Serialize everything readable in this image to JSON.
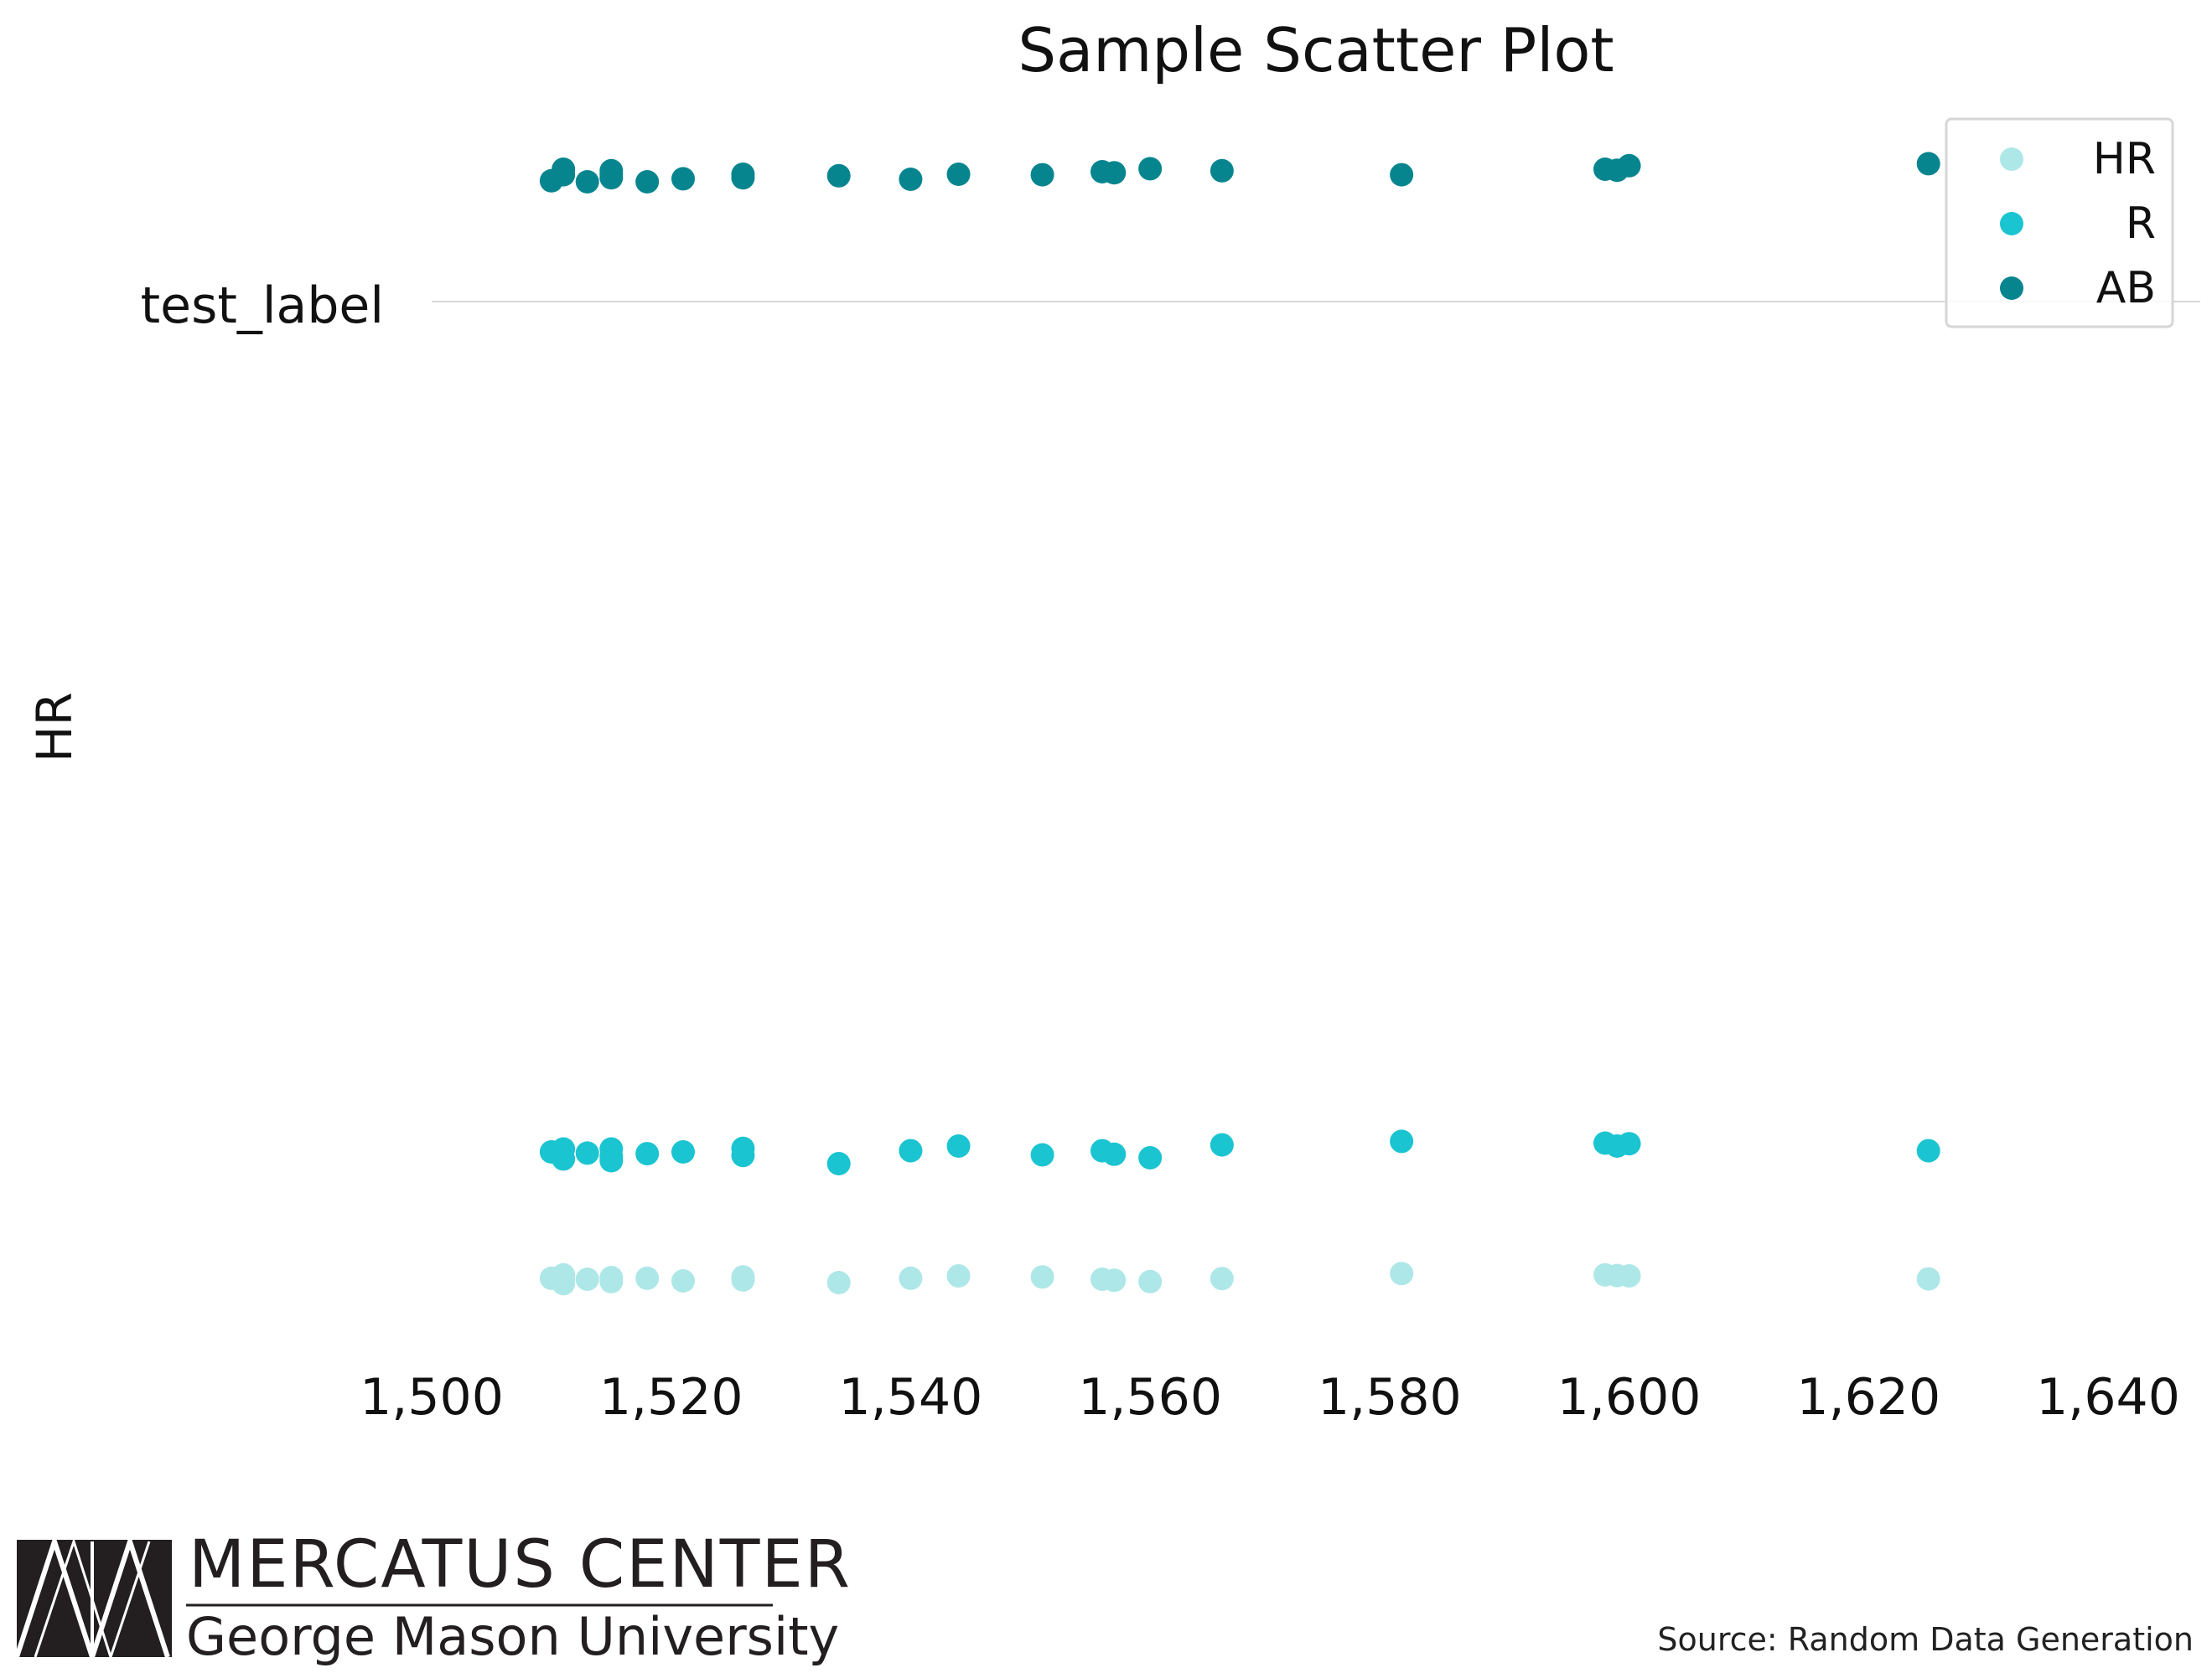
{
  "chart_data": {
    "type": "scatter",
    "title": "Sample Scatter Plot",
    "ylabel": "HR",
    "xlabel": "",
    "xlim": [
      1500,
      1640
    ],
    "xticks": [
      "1,500",
      "1,520",
      "1,540",
      "1,560",
      "1,580",
      "1,600",
      "1,620",
      "1,640"
    ],
    "xtick_values": [
      1500,
      1520,
      1540,
      1560,
      1580,
      1600,
      1620,
      1640
    ],
    "ytick_labels": [
      "test_label"
    ],
    "grid": "horizontal line at category",
    "legend_position": "top-right",
    "series": [
      {
        "name": "HR",
        "color": "#aee7e8",
        "band": "lower",
        "points": [
          [
            1510,
            0.48
          ],
          [
            1511,
            0.32
          ],
          [
            1511,
            0.58
          ],
          [
            1511,
            0.42
          ],
          [
            1513,
            0.45
          ],
          [
            1515,
            0.38
          ],
          [
            1515,
            0.5
          ],
          [
            1518,
            0.48
          ],
          [
            1521,
            0.4
          ],
          [
            1526,
            0.52
          ],
          [
            1526,
            0.43
          ],
          [
            1534,
            0.35
          ],
          [
            1540,
            0.48
          ],
          [
            1544,
            0.55
          ],
          [
            1551,
            0.52
          ],
          [
            1556,
            0.45
          ],
          [
            1557,
            0.42
          ],
          [
            1560,
            0.38
          ],
          [
            1566,
            0.47
          ],
          [
            1581,
            0.62
          ],
          [
            1598,
            0.58
          ],
          [
            1599,
            0.56
          ],
          [
            1600,
            0.55
          ],
          [
            1625,
            0.46
          ]
        ]
      },
      {
        "name": "R",
        "color": "#1ac4d0",
        "band": "middle",
        "points": [
          [
            1510,
            0.5
          ],
          [
            1511,
            0.55
          ],
          [
            1511,
            0.38
          ],
          [
            1513,
            0.48
          ],
          [
            1515,
            0.42
          ],
          [
            1515,
            0.55
          ],
          [
            1515,
            0.35
          ],
          [
            1518,
            0.47
          ],
          [
            1521,
            0.5
          ],
          [
            1526,
            0.56
          ],
          [
            1526,
            0.44
          ],
          [
            1534,
            0.3
          ],
          [
            1540,
            0.52
          ],
          [
            1544,
            0.6
          ],
          [
            1551,
            0.45
          ],
          [
            1556,
            0.52
          ],
          [
            1557,
            0.46
          ],
          [
            1560,
            0.4
          ],
          [
            1566,
            0.62
          ],
          [
            1581,
            0.68
          ],
          [
            1598,
            0.65
          ],
          [
            1599,
            0.6
          ],
          [
            1600,
            0.64
          ],
          [
            1625,
            0.52
          ]
        ]
      },
      {
        "name": "AB",
        "color": "#06858f",
        "band": "upper",
        "points": [
          [
            1510,
            0.32
          ],
          [
            1511,
            0.55
          ],
          [
            1511,
            0.44
          ],
          [
            1513,
            0.3
          ],
          [
            1515,
            0.52
          ],
          [
            1515,
            0.45
          ],
          [
            1515,
            0.38
          ],
          [
            1518,
            0.3
          ],
          [
            1521,
            0.36
          ],
          [
            1526,
            0.45
          ],
          [
            1526,
            0.38
          ],
          [
            1534,
            0.42
          ],
          [
            1540,
            0.35
          ],
          [
            1544,
            0.45
          ],
          [
            1551,
            0.44
          ],
          [
            1556,
            0.5
          ],
          [
            1557,
            0.48
          ],
          [
            1560,
            0.56
          ],
          [
            1566,
            0.52
          ],
          [
            1581,
            0.44
          ],
          [
            1598,
            0.55
          ],
          [
            1599,
            0.53
          ],
          [
            1600,
            0.62
          ],
          [
            1625,
            0.66
          ]
        ]
      }
    ]
  },
  "footer": {
    "logo_line1": "MERCATUS CENTER",
    "logo_line2": "George Mason University",
    "source": "Source: Random Data Generation"
  }
}
